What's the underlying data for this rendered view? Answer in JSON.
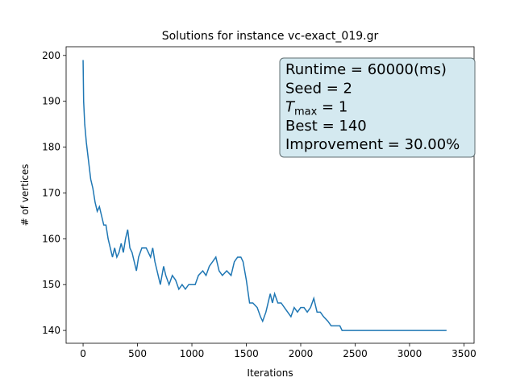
{
  "chart_data": {
    "type": "line",
    "title": "Solutions for instance vc-exact_019.gr",
    "xlabel": "Iterations",
    "ylabel": "# of vertices",
    "x": [
      0,
      5,
      15,
      30,
      50,
      70,
      90,
      110,
      130,
      150,
      170,
      190,
      210,
      230,
      250,
      270,
      290,
      310,
      330,
      350,
      370,
      390,
      410,
      430,
      450,
      470,
      490,
      510,
      540,
      580,
      620,
      640,
      660,
      690,
      710,
      740,
      760,
      790,
      820,
      850,
      880,
      910,
      940,
      970,
      1000,
      1030,
      1060,
      1100,
      1130,
      1160,
      1190,
      1220,
      1250,
      1280,
      1320,
      1360,
      1390,
      1420,
      1450,
      1470,
      1500,
      1530,
      1560,
      1600,
      1630,
      1650,
      1680,
      1700,
      1720,
      1740,
      1760,
      1790,
      1820,
      1850,
      1880,
      1910,
      1940,
      1970,
      2000,
      2030,
      2060,
      2090,
      2120,
      2150,
      2180,
      2210,
      2250,
      2280,
      2320,
      2360,
      2380,
      2420,
      3340
    ],
    "values": [
      199,
      190,
      185,
      181,
      177,
      173,
      171,
      168,
      166,
      167,
      165,
      163,
      163,
      160,
      158,
      156,
      158,
      156,
      157,
      159,
      157,
      160,
      162,
      158,
      157,
      155,
      153,
      156,
      158,
      158,
      156,
      158,
      155,
      152,
      150,
      154,
      152,
      150,
      152,
      151,
      149,
      150,
      149,
      150,
      150,
      150,
      152,
      153,
      152,
      154,
      155,
      156,
      153,
      152,
      153,
      152,
      155,
      156,
      156,
      155,
      151,
      146,
      146,
      145,
      143,
      142,
      144,
      146,
      148,
      146,
      148,
      146,
      146,
      145,
      144,
      143,
      145,
      144,
      145,
      145,
      144,
      145,
      147,
      144,
      144,
      143,
      142,
      141,
      141,
      141,
      140,
      140,
      140
    ],
    "color": "#1f77b4",
    "xlim": [
      -156,
      3593
    ],
    "ylim": [
      137.2,
      201.9
    ],
    "xticks": [
      0,
      500,
      1000,
      1500,
      2000,
      2500,
      3000,
      3500
    ],
    "yticks": [
      140,
      150,
      160,
      170,
      180,
      190,
      200
    ],
    "annotation": {
      "lines": [
        "Runtime = 60000(ms)",
        "Seed = 2",
        {
          "base": "T",
          "sub": "max",
          "rest": " = 1"
        },
        "Best = 140",
        "Improvement = 30.00%"
      ]
    }
  }
}
